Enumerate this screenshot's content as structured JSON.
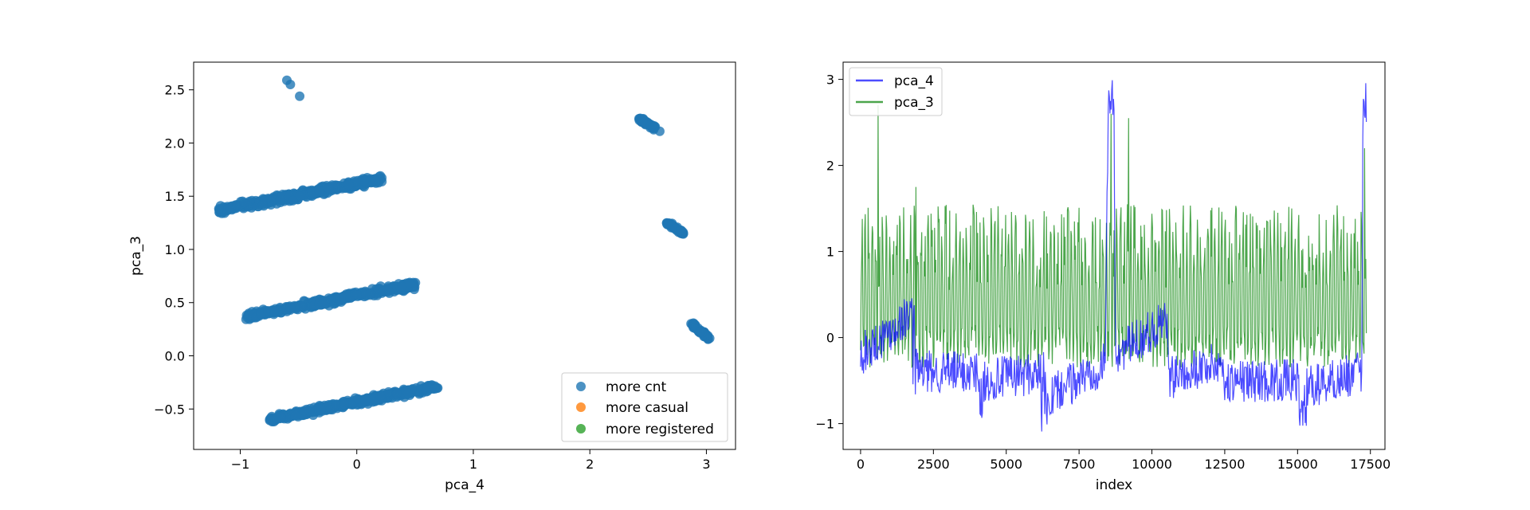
{
  "chart_data": [
    {
      "type": "scatter",
      "xlabel": "pca_4",
      "ylabel": "pca_3",
      "xlim": [
        -1.4,
        3.25
      ],
      "ylim": [
        -0.88,
        2.76
      ],
      "xticks": [
        -1,
        0,
        1,
        2,
        3
      ],
      "yticks": [
        -0.5,
        0.0,
        0.5,
        1.0,
        1.5,
        2.0,
        2.5
      ],
      "legend_position": "lower-right",
      "legend": [
        {
          "label": "more cnt",
          "color": "#1f77b4"
        },
        {
          "label": "more casual",
          "color": "#ff7f0e"
        },
        {
          "label": "more registered",
          "color": "#2ca02c"
        }
      ],
      "series": [
        {
          "name": "more cnt",
          "color": "#1f77b4",
          "clusters": [
            {
              "x0": -1.18,
              "x1": 0.22,
              "y0": 1.37,
              "y1": 1.66,
              "spread": 0.05
            },
            {
              "x0": -0.95,
              "x1": 0.5,
              "y0": 0.37,
              "y1": 0.67,
              "spread": 0.05
            },
            {
              "x0": -0.75,
              "x1": 0.7,
              "y0": -0.6,
              "y1": -0.28,
              "spread": 0.05
            },
            {
              "x0": 2.42,
              "x1": 2.56,
              "y0": 2.23,
              "y1": 2.14,
              "spread": 0.03
            },
            {
              "x0": 2.66,
              "x1": 2.8,
              "y0": 1.25,
              "y1": 1.15,
              "spread": 0.03
            },
            {
              "x0": 2.87,
              "x1": 3.02,
              "y0": 0.3,
              "y1": 0.17,
              "spread": 0.03
            }
          ],
          "points": [
            [
              -0.6,
              2.59
            ],
            [
              -0.57,
              2.55
            ],
            [
              -0.49,
              2.44
            ],
            [
              2.6,
              2.11
            ]
          ]
        },
        {
          "name": "more casual",
          "color": "#ff7f0e",
          "points": []
        },
        {
          "name": "more registered",
          "color": "#2ca02c",
          "points": []
        }
      ]
    },
    {
      "type": "line",
      "xlabel": "index",
      "ylabel": "",
      "xlim": [
        -600,
        18000
      ],
      "ylim": [
        -1.3,
        3.2
      ],
      "xticks": [
        0,
        2500,
        5000,
        7500,
        10000,
        12500,
        15000,
        17500
      ],
      "yticks": [
        -1,
        0,
        1,
        2,
        3
      ],
      "legend_position": "upper-left",
      "x_max": 17379,
      "series": [
        {
          "name": "pca_4",
          "color": "#0000ff",
          "alpha": 0.7,
          "baseline": [
            [
              0,
              -0.2
            ],
            [
              1800,
              0.3
            ],
            [
              2000,
              -0.4
            ],
            [
              4000,
              -0.4
            ],
            [
              4100,
              -0.5
            ],
            [
              6300,
              -0.4
            ],
            [
              6400,
              -0.7
            ],
            [
              8400,
              -0.3
            ],
            [
              8500,
              2.75
            ],
            [
              8700,
              2.75
            ],
            [
              8750,
              -0.2
            ],
            [
              10500,
              0.2
            ],
            [
              10600,
              -0.4
            ],
            [
              12400,
              -0.3
            ],
            [
              12500,
              -0.5
            ],
            [
              15000,
              -0.5
            ],
            [
              15100,
              -0.6
            ],
            [
              17200,
              -0.4
            ],
            [
              17250,
              2.75
            ],
            [
              17379,
              2.75
            ]
          ],
          "dips": [
            [
              1800,
              2000,
              -0.8
            ],
            [
              4050,
              4300,
              -0.95
            ],
            [
              6200,
              6600,
              -1.15
            ],
            [
              10550,
              10750,
              -0.8
            ],
            [
              12450,
              12650,
              -0.8
            ],
            [
              15050,
              15300,
              -1.1
            ]
          ]
        },
        {
          "name": "pca_3",
          "color": "#008000",
          "alpha": 0.7,
          "low": -0.35,
          "high": 1.55,
          "spikes": [
            [
              600,
              2.7
            ],
            [
              1900,
              1.75
            ],
            [
              8600,
              2.6
            ],
            [
              9200,
              2.55
            ],
            [
              17300,
              2.2
            ]
          ]
        }
      ]
    }
  ]
}
